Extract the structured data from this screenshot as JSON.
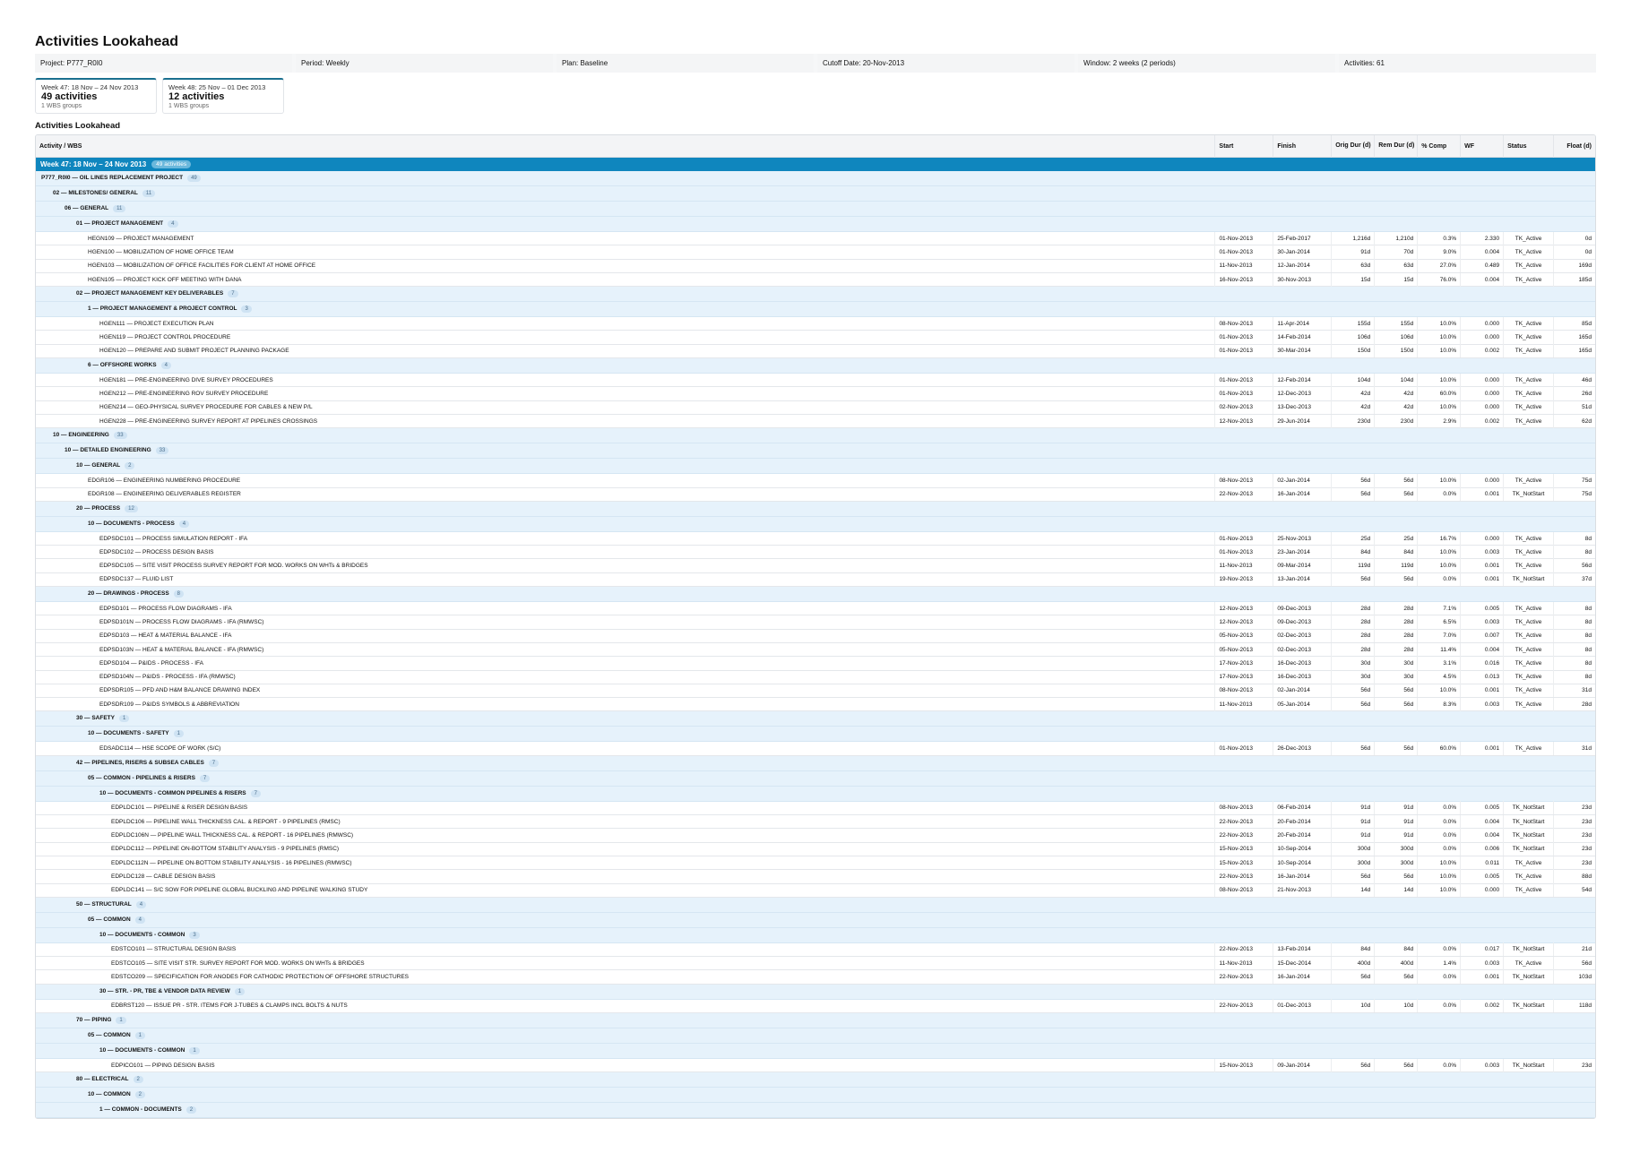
{
  "page": {
    "title": "Activities Lookahead",
    "section_title": "Activities Lookahead"
  },
  "meta": [
    {
      "label": "Project:",
      "value": "P777_R0I0"
    },
    {
      "label": "Period:",
      "value": "Weekly"
    },
    {
      "label": "Plan:",
      "value": "Baseline"
    },
    {
      "label": "Cutoff Date:",
      "value": "20-Nov-2013"
    },
    {
      "label": "Window:",
      "value": "2 weeks (2 periods)"
    },
    {
      "label": "Activities:",
      "value": "61"
    }
  ],
  "periods": [
    {
      "label": "Week 47: 18 Nov – 24 Nov 2013",
      "count": "49 activities",
      "sub": "1 WBS groups"
    },
    {
      "label": "Week 48: 25 Nov – 01 Dec 2013",
      "count": "12 activities",
      "sub": "1 WBS groups"
    }
  ],
  "columns": {
    "activity": "Activity / WBS",
    "start": "Start",
    "finish": "Finish",
    "orig_dur": "Orig Dur (d)",
    "rem_dur": "Rem Dur (d)",
    "pct": "% Comp",
    "wf": "WF",
    "status": "Status",
    "float": "Float (d)"
  },
  "week": {
    "label": "Week 47: 18 Nov – 24 Nov 2013",
    "badge": "49 activities"
  },
  "rows": [
    {
      "t": "w",
      "lvl": 0,
      "name": "P777_R0I0 — OIL LINES REPLACEMENT PROJECT",
      "n": "49"
    },
    {
      "t": "w",
      "lvl": 1,
      "name": "02 — MILESTONES/ GENERAL",
      "n": "11"
    },
    {
      "t": "w",
      "lvl": 2,
      "name": "06 — GENERAL",
      "n": "11"
    },
    {
      "t": "w",
      "lvl": 3,
      "name": "01 — PROJECT MANAGEMENT",
      "n": "4"
    },
    {
      "t": "a",
      "lvl": 4,
      "name": "HEGN109 — PROJECT MANAGEMENT",
      "s": "01-Nov-2013",
      "f": "25-Feb-2017",
      "od": "1,216d",
      "rd": "1,210d",
      "pc": "0.3%",
      "wf": "2.330",
      "st": "TK_Active",
      "fl": "0d"
    },
    {
      "t": "a",
      "lvl": 4,
      "name": "HGEN100 — MOBILIZATION OF HOME OFFICE TEAM",
      "s": "01-Nov-2013",
      "f": "30-Jan-2014",
      "od": "91d",
      "rd": "70d",
      "pc": "9.0%",
      "wf": "0.004",
      "st": "TK_Active",
      "fl": "0d"
    },
    {
      "t": "a",
      "lvl": 4,
      "name": "HGEN103 — MOBILIZATION OF OFFICE FACILITIES FOR CLIENT AT HOME OFFICE",
      "s": "11-Nov-2013",
      "f": "12-Jan-2014",
      "od": "63d",
      "rd": "63d",
      "pc": "27.0%",
      "wf": "0.489",
      "st": "TK_Active",
      "fl": "169d"
    },
    {
      "t": "a",
      "lvl": 4,
      "name": "HGEN105 — PROJECT KICK OFF MEETING WITH DANA",
      "s": "16-Nov-2013",
      "f": "30-Nov-2013",
      "od": "15d",
      "rd": "15d",
      "pc": "76.0%",
      "wf": "0.004",
      "st": "TK_Active",
      "fl": "185d"
    },
    {
      "t": "w",
      "lvl": 3,
      "name": "02 — PROJECT MANAGEMENT KEY DELIVERABLES",
      "n": "7"
    },
    {
      "t": "w",
      "lvl": 4,
      "name": "1 — PROJECT MANAGEMENT & PROJECT CONTROL",
      "n": "3"
    },
    {
      "t": "a",
      "lvl": 5,
      "name": "HGEN111 — PROJECT EXECUTION PLAN",
      "s": "08-Nov-2013",
      "f": "11-Apr-2014",
      "od": "155d",
      "rd": "155d",
      "pc": "10.0%",
      "wf": "0.000",
      "st": "TK_Active",
      "fl": "85d"
    },
    {
      "t": "a",
      "lvl": 5,
      "name": "HGEN119 — PROJECT CONTROL PROCEDURE",
      "s": "01-Nov-2013",
      "f": "14-Feb-2014",
      "od": "106d",
      "rd": "106d",
      "pc": "10.0%",
      "wf": "0.000",
      "st": "TK_Active",
      "fl": "165d"
    },
    {
      "t": "a",
      "lvl": 5,
      "name": "HGEN120 — PREPARE AND SUBMIT PROJECT PLANNING PACKAGE",
      "s": "01-Nov-2013",
      "f": "30-Mar-2014",
      "od": "150d",
      "rd": "150d",
      "pc": "10.0%",
      "wf": "0.002",
      "st": "TK_Active",
      "fl": "165d"
    },
    {
      "t": "w",
      "lvl": 4,
      "name": "6 — OFFSHORE WORKS",
      "n": "4"
    },
    {
      "t": "a",
      "lvl": 5,
      "name": "HGEN181 — PRE-ENGINEERING DIVE SURVEY PROCEDURES",
      "s": "01-Nov-2013",
      "f": "12-Feb-2014",
      "od": "104d",
      "rd": "104d",
      "pc": "10.0%",
      "wf": "0.000",
      "st": "TK_Active",
      "fl": "46d"
    },
    {
      "t": "a",
      "lvl": 5,
      "name": "HGEN212 — PRE-ENGINEERING ROV SURVEY PROCEDURE",
      "s": "01-Nov-2013",
      "f": "12-Dec-2013",
      "od": "42d",
      "rd": "42d",
      "pc": "60.0%",
      "wf": "0.000",
      "st": "TK_Active",
      "fl": "26d"
    },
    {
      "t": "a",
      "lvl": 5,
      "name": "HGEN214 — GEO-PHYSICAL SURVEY PROCEDURE FOR CABLES & NEW P/L",
      "s": "02-Nov-2013",
      "f": "13-Dec-2013",
      "od": "42d",
      "rd": "42d",
      "pc": "10.0%",
      "wf": "0.000",
      "st": "TK_Active",
      "fl": "51d"
    },
    {
      "t": "a",
      "lvl": 5,
      "name": "HGEN228 — PRE-ENGINEERING SURVEY REPORT AT PIPELINES CROSSINGS",
      "s": "12-Nov-2013",
      "f": "29-Jun-2014",
      "od": "230d",
      "rd": "230d",
      "pc": "2.9%",
      "wf": "0.002",
      "st": "TK_Active",
      "fl": "62d"
    },
    {
      "t": "w",
      "lvl": 1,
      "name": "10 — ENGINEERING",
      "n": "33"
    },
    {
      "t": "w",
      "lvl": 2,
      "name": "10 — DETAILED ENGINEERING",
      "n": "33"
    },
    {
      "t": "w",
      "lvl": 3,
      "name": "10 — GENERAL",
      "n": "2"
    },
    {
      "t": "a",
      "lvl": 4,
      "name": "EDGR106 — ENGINEERING NUMBERING PROCEDURE",
      "s": "08-Nov-2013",
      "f": "02-Jan-2014",
      "od": "56d",
      "rd": "56d",
      "pc": "10.0%",
      "wf": "0.000",
      "st": "TK_Active",
      "fl": "75d"
    },
    {
      "t": "a",
      "lvl": 4,
      "name": "EDGR108 — ENGINEERING DELIVERABLES REGISTER",
      "s": "22-Nov-2013",
      "f": "16-Jan-2014",
      "od": "56d",
      "rd": "56d",
      "pc": "0.0%",
      "wf": "0.001",
      "st": "TK_NotStart",
      "fl": "75d"
    },
    {
      "t": "w",
      "lvl": 3,
      "name": "20 — PROCESS",
      "n": "12"
    },
    {
      "t": "w",
      "lvl": 4,
      "name": "10 — DOCUMENTS - PROCESS",
      "n": "4"
    },
    {
      "t": "a",
      "lvl": 5,
      "name": "EDPSDC101 — PROCESS SIMULATION REPORT - IFA",
      "s": "01-Nov-2013",
      "f": "25-Nov-2013",
      "od": "25d",
      "rd": "25d",
      "pc": "16.7%",
      "wf": "0.000",
      "st": "TK_Active",
      "fl": "8d"
    },
    {
      "t": "a",
      "lvl": 5,
      "name": "EDPSDC102 — PROCESS DESIGN BASIS",
      "s": "01-Nov-2013",
      "f": "23-Jan-2014",
      "od": "84d",
      "rd": "84d",
      "pc": "10.0%",
      "wf": "0.003",
      "st": "TK_Active",
      "fl": "8d"
    },
    {
      "t": "a",
      "lvl": 5,
      "name": "EDPSDC105 — SITE VISIT PROCESS SURVEY REPORT FOR MOD. WORKS ON WHTs & BRIDGES",
      "s": "11-Nov-2013",
      "f": "09-Mar-2014",
      "od": "119d",
      "rd": "119d",
      "pc": "10.0%",
      "wf": "0.001",
      "st": "TK_Active",
      "fl": "56d"
    },
    {
      "t": "a",
      "lvl": 5,
      "name": "EDPSDC137 — FLUID LIST",
      "s": "19-Nov-2013",
      "f": "13-Jan-2014",
      "od": "56d",
      "rd": "56d",
      "pc": "0.0%",
      "wf": "0.001",
      "st": "TK_NotStart",
      "fl": "37d"
    },
    {
      "t": "w",
      "lvl": 4,
      "name": "20 — DRAWINGS - PROCESS",
      "n": "8"
    },
    {
      "t": "a",
      "lvl": 5,
      "name": "EDPSD101 — PROCESS FLOW DIAGRAMS - IFA",
      "s": "12-Nov-2013",
      "f": "09-Dec-2013",
      "od": "28d",
      "rd": "28d",
      "pc": "7.1%",
      "wf": "0.005",
      "st": "TK_Active",
      "fl": "8d"
    },
    {
      "t": "a",
      "lvl": 5,
      "name": "EDPSD101N — PROCESS FLOW DIAGRAMS - IFA (RMWSC)",
      "s": "12-Nov-2013",
      "f": "09-Dec-2013",
      "od": "28d",
      "rd": "28d",
      "pc": "6.5%",
      "wf": "0.003",
      "st": "TK_Active",
      "fl": "8d"
    },
    {
      "t": "a",
      "lvl": 5,
      "name": "EDPSD103 — HEAT & MATERIAL BALANCE - IFA",
      "s": "05-Nov-2013",
      "f": "02-Dec-2013",
      "od": "28d",
      "rd": "28d",
      "pc": "7.0%",
      "wf": "0.007",
      "st": "TK_Active",
      "fl": "8d"
    },
    {
      "t": "a",
      "lvl": 5,
      "name": "EDPSD103N — HEAT & MATERIAL BALANCE - IFA (RMWSC)",
      "s": "05-Nov-2013",
      "f": "02-Dec-2013",
      "od": "28d",
      "rd": "28d",
      "pc": "11.4%",
      "wf": "0.004",
      "st": "TK_Active",
      "fl": "8d"
    },
    {
      "t": "a",
      "lvl": 5,
      "name": "EDPSD104 — P&IDS - PROCESS - IFA",
      "s": "17-Nov-2013",
      "f": "16-Dec-2013",
      "od": "30d",
      "rd": "30d",
      "pc": "3.1%",
      "wf": "0.016",
      "st": "TK_Active",
      "fl": "8d"
    },
    {
      "t": "a",
      "lvl": 5,
      "name": "EDPSD104N — P&IDS - PROCESS - IFA (RMWSC)",
      "s": "17-Nov-2013",
      "f": "16-Dec-2013",
      "od": "30d",
      "rd": "30d",
      "pc": "4.5%",
      "wf": "0.013",
      "st": "TK_Active",
      "fl": "8d"
    },
    {
      "t": "a",
      "lvl": 5,
      "name": "EDPSDR105 — PFD AND H&M BALANCE DRAWING INDEX",
      "s": "08-Nov-2013",
      "f": "02-Jan-2014",
      "od": "56d",
      "rd": "56d",
      "pc": "10.0%",
      "wf": "0.001",
      "st": "TK_Active",
      "fl": "31d"
    },
    {
      "t": "a",
      "lvl": 5,
      "name": "EDPSDR109 — P&IDS SYMBOLS & ABBREVIATION",
      "s": "11-Nov-2013",
      "f": "05-Jan-2014",
      "od": "56d",
      "rd": "56d",
      "pc": "8.3%",
      "wf": "0.003",
      "st": "TK_Active",
      "fl": "28d"
    },
    {
      "t": "w",
      "lvl": 3,
      "name": "30 — SAFETY",
      "n": "1"
    },
    {
      "t": "w",
      "lvl": 4,
      "name": "10 — DOCUMENTS - SAFETY",
      "n": "1"
    },
    {
      "t": "a",
      "lvl": 5,
      "name": "EDSADC114 — HSE SCOPE OF WORK (S/C)",
      "s": "01-Nov-2013",
      "f": "26-Dec-2013",
      "od": "56d",
      "rd": "56d",
      "pc": "60.0%",
      "wf": "0.001",
      "st": "TK_Active",
      "fl": "31d"
    },
    {
      "t": "w",
      "lvl": 3,
      "name": "42 — PIPELINES, RISERS & SUBSEA CABLES",
      "n": "7"
    },
    {
      "t": "w",
      "lvl": 4,
      "name": "05 — COMMON - PIPELINES & RISERS",
      "n": "7"
    },
    {
      "t": "w",
      "lvl": 5,
      "name": "10 — DOCUMENTS - COMMON PIPELINES & RISERS",
      "n": "7"
    },
    {
      "t": "a",
      "lvl": 6,
      "name": "EDPLDC101 — PIPELINE & RISER DESIGN BASIS",
      "s": "08-Nov-2013",
      "f": "06-Feb-2014",
      "od": "91d",
      "rd": "91d",
      "pc": "0.0%",
      "wf": "0.005",
      "st": "TK_NotStart",
      "fl": "23d"
    },
    {
      "t": "a",
      "lvl": 6,
      "name": "EDPLDC106 — PIPELINE WALL THICKNESS CAL. & REPORT - 9 PIPELINES (RMSC)",
      "s": "22-Nov-2013",
      "f": "20-Feb-2014",
      "od": "91d",
      "rd": "91d",
      "pc": "0.0%",
      "wf": "0.004",
      "st": "TK_NotStart",
      "fl": "23d"
    },
    {
      "t": "a",
      "lvl": 6,
      "name": "EDPLDC106N — PIPELINE WALL THICKNESS CAL. & REPORT - 16 PIPELINES (RMWSC)",
      "s": "22-Nov-2013",
      "f": "20-Feb-2014",
      "od": "91d",
      "rd": "91d",
      "pc": "0.0%",
      "wf": "0.004",
      "st": "TK_NotStart",
      "fl": "23d"
    },
    {
      "t": "a",
      "lvl": 6,
      "name": "EDPLDC112 — PIPELINE ON-BOTTOM STABILITY ANALYSIS - 9 PIPELINES (RMSC)",
      "s": "15-Nov-2013",
      "f": "10-Sep-2014",
      "od": "300d",
      "rd": "300d",
      "pc": "0.0%",
      "wf": "0.006",
      "st": "TK_NotStart",
      "fl": "23d"
    },
    {
      "t": "a",
      "lvl": 6,
      "name": "EDPLDC112N — PIPELINE ON-BOTTOM STABILITY ANALYSIS - 16 PIPELINES (RMWSC)",
      "s": "15-Nov-2013",
      "f": "10-Sep-2014",
      "od": "300d",
      "rd": "300d",
      "pc": "10.0%",
      "wf": "0.011",
      "st": "TK_Active",
      "fl": "23d"
    },
    {
      "t": "a",
      "lvl": 6,
      "name": "EDPLDC128 — CABLE DESIGN BASIS",
      "s": "22-Nov-2013",
      "f": "16-Jan-2014",
      "od": "56d",
      "rd": "56d",
      "pc": "10.0%",
      "wf": "0.005",
      "st": "TK_Active",
      "fl": "88d"
    },
    {
      "t": "a",
      "lvl": 6,
      "name": "EDPLDC141 — S/C SOW FOR PIPELINE GLOBAL BUCKLING AND PIPELINE WALKING STUDY",
      "s": "08-Nov-2013",
      "f": "21-Nov-2013",
      "od": "14d",
      "rd": "14d",
      "pc": "10.0%",
      "wf": "0.000",
      "st": "TK_Active",
      "fl": "54d"
    },
    {
      "t": "w",
      "lvl": 3,
      "name": "50 — STRUCTURAL",
      "n": "4"
    },
    {
      "t": "w",
      "lvl": 4,
      "name": "05 — COMMON",
      "n": "4"
    },
    {
      "t": "w",
      "lvl": 5,
      "name": "10 — DOCUMENTS - COMMON",
      "n": "3"
    },
    {
      "t": "a",
      "lvl": 6,
      "name": "EDSTCO101 — STRUCTURAL DESIGN BASIS",
      "s": "22-Nov-2013",
      "f": "13-Feb-2014",
      "od": "84d",
      "rd": "84d",
      "pc": "0.0%",
      "wf": "0.017",
      "st": "TK_NotStart",
      "fl": "21d"
    },
    {
      "t": "a",
      "lvl": 6,
      "name": "EDSTCO105 — SITE VISIT STR. SURVEY REPORT FOR MOD. WORKS ON WHTs & BRIDGES",
      "s": "11-Nov-2013",
      "f": "15-Dec-2014",
      "od": "400d",
      "rd": "400d",
      "pc": "1.4%",
      "wf": "0.003",
      "st": "TK_Active",
      "fl": "56d"
    },
    {
      "t": "a",
      "lvl": 6,
      "name": "EDSTCO209 — SPECIFICATION FOR ANODES FOR CATHODIC PROTECTION OF OFFSHORE STRUCTURES",
      "s": "22-Nov-2013",
      "f": "16-Jan-2014",
      "od": "56d",
      "rd": "56d",
      "pc": "0.0%",
      "wf": "0.001",
      "st": "TK_NotStart",
      "fl": "103d"
    },
    {
      "t": "w",
      "lvl": 5,
      "name": "30 — STR. - PR, TBE & VENDOR DATA REVIEW",
      "n": "1"
    },
    {
      "t": "a",
      "lvl": 6,
      "name": "EDBRST120 — ISSUE PR - STR. ITEMS FOR J-TUBES & CLAMPS INCL BOLTS & NUTS",
      "s": "22-Nov-2013",
      "f": "01-Dec-2013",
      "od": "10d",
      "rd": "10d",
      "pc": "0.0%",
      "wf": "0.002",
      "st": "TK_NotStart",
      "fl": "118d"
    },
    {
      "t": "w",
      "lvl": 3,
      "name": "70 — PIPING",
      "n": "1"
    },
    {
      "t": "w",
      "lvl": 4,
      "name": "05 — COMMON",
      "n": "1"
    },
    {
      "t": "w",
      "lvl": 5,
      "name": "10 — DOCUMENTS - COMMON",
      "n": "1"
    },
    {
      "t": "a",
      "lvl": 6,
      "name": "EDPICO101 — PIPING DESIGN BASIS",
      "s": "15-Nov-2013",
      "f": "09-Jan-2014",
      "od": "56d",
      "rd": "56d",
      "pc": "0.0%",
      "wf": "0.003",
      "st": "TK_NotStart",
      "fl": "23d"
    },
    {
      "t": "w",
      "lvl": 3,
      "name": "80 — ELECTRICAL",
      "n": "2"
    },
    {
      "t": "w",
      "lvl": 4,
      "name": "10 — COMMON",
      "n": "2"
    },
    {
      "t": "w",
      "lvl": 5,
      "name": "1 — COMMON - DOCUMENTS",
      "n": "2"
    }
  ],
  "colors": {
    "week_band": "#0f86be",
    "wbs_band": "#e6f2fb",
    "header_bg": "#f3f4f6",
    "card_accent": "#1a6f8f"
  }
}
